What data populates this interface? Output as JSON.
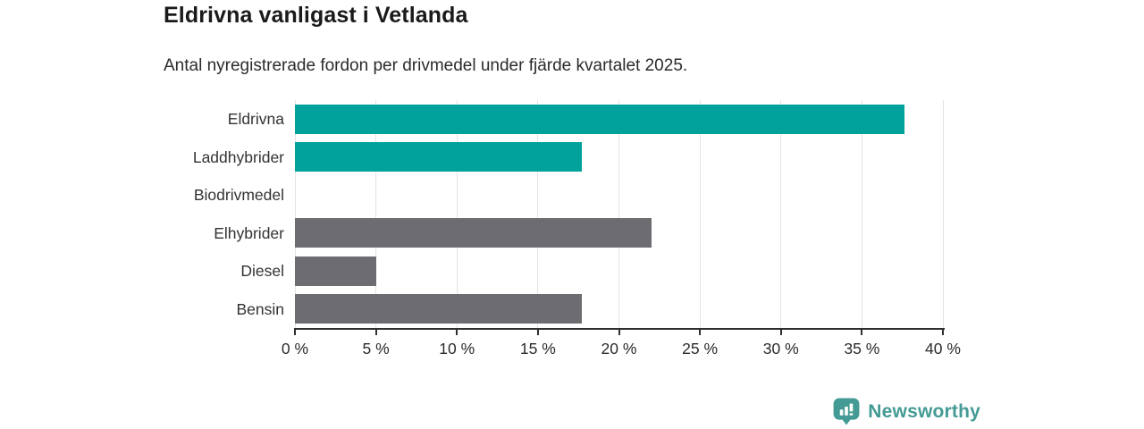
{
  "chart_data": {
    "type": "bar",
    "orientation": "horizontal",
    "title": "Eldrivna vanligast i Vetlanda",
    "subtitle": "Antal nyregistrerade fordon per drivmedel under fjärde kvartalet 2025.",
    "categories": [
      "Eldrivna",
      "Laddhybrider",
      "Biodrivmedel",
      "Elhybrider",
      "Diesel",
      "Bensin"
    ],
    "values": [
      37.6,
      17.7,
      0,
      22,
      5,
      17.7
    ],
    "bar_color_keys": [
      "teal",
      "teal",
      "none",
      "gray",
      "gray",
      "gray"
    ],
    "x_tick_labels": [
      "0 %",
      "5 %",
      "10 %",
      "15 %",
      "20 %",
      "25 %",
      "30 %",
      "35 %",
      "40 %"
    ],
    "xlim": [
      0,
      40
    ],
    "tick_step": 5,
    "grid": true,
    "legend": "none"
  },
  "colors": {
    "teal": "#00a29b",
    "gray": "#6d6d71",
    "grid": "#e4e4e4",
    "axis": "#2f2f2f",
    "brand": "#449a94"
  },
  "footer": {
    "brand": "Newsworthy"
  }
}
